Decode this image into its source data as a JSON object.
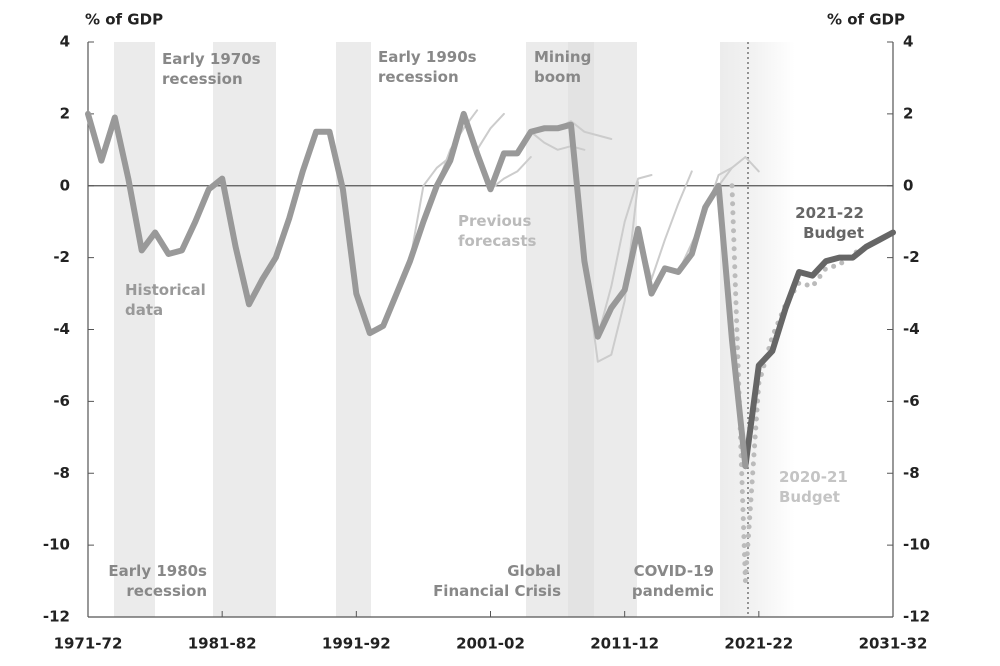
{
  "chart_data": {
    "type": "line",
    "y_label": "% of GDP",
    "y2_label": "% of GDP",
    "categories": [
      "1971-72",
      null,
      null,
      null,
      null,
      null,
      null,
      null,
      null,
      null,
      "1981-82",
      null,
      null,
      null,
      null,
      null,
      null,
      null,
      null,
      null,
      "1991-92",
      null,
      null,
      null,
      null,
      null,
      null,
      null,
      null,
      null,
      "2001-02",
      null,
      null,
      null,
      null,
      null,
      null,
      null,
      null,
      null,
      "2011-12",
      null,
      null,
      null,
      null,
      null,
      null,
      null,
      null,
      null,
      "2021-22",
      null,
      null,
      null,
      null,
      null,
      null,
      null,
      null,
      null,
      "2031-32"
    ],
    "ylim": [
      -12,
      4
    ],
    "yticks": [
      4,
      2,
      0,
      -2,
      -4,
      -6,
      -8,
      -10,
      -12
    ],
    "y2lim": [
      -12,
      4
    ],
    "y2ticks": [
      4,
      2,
      0,
      -2,
      -4,
      -6,
      -8,
      -10,
      -12
    ],
    "annotations": [
      "Early 1970s recession",
      "Early 1980s recession",
      "Early 1990s recession",
      "Mining boom",
      "Global Financial Crisis",
      "COVID-19 pandemic"
    ],
    "series": [
      {
        "name": "Historical data",
        "color": "#999999",
        "values": [
          2.0,
          0.7,
          1.9,
          0.2,
          -1.8,
          -1.3,
          -1.9,
          -1.8,
          -1.0,
          -0.1,
          0.2,
          -1.7,
          -3.3,
          -2.6,
          -2.0,
          -0.9,
          0.4,
          1.5,
          1.5,
          -0.1,
          -3.0,
          -4.1,
          -3.9,
          -3.0,
          -2.1,
          -1.0,
          0.0,
          0.7,
          2.0,
          0.9,
          -0.1,
          0.9,
          0.9,
          1.5,
          1.6,
          1.6,
          1.7,
          -2.1,
          -4.2,
          -3.4,
          -2.9,
          -1.2,
          -3.0,
          -2.3,
          -2.4,
          -1.9,
          -0.6,
          0.0,
          -4.3,
          -7.8,
          null,
          null,
          null,
          null,
          null,
          null,
          null,
          null,
          null,
          null,
          null
        ]
      },
      {
        "name": "2021-22 Budget",
        "color": "#666666",
        "values": [
          null,
          null,
          null,
          null,
          null,
          null,
          null,
          null,
          null,
          null,
          null,
          null,
          null,
          null,
          null,
          null,
          null,
          null,
          null,
          null,
          null,
          null,
          null,
          null,
          null,
          null,
          null,
          null,
          null,
          null,
          null,
          null,
          null,
          null,
          null,
          null,
          null,
          null,
          null,
          null,
          null,
          null,
          null,
          null,
          null,
          null,
          null,
          null,
          null,
          -7.8,
          -5.0,
          -4.6,
          -3.4,
          -2.4,
          -2.5,
          -2.1,
          -2.0,
          -2.0,
          -1.7,
          -1.5,
          -1.3
        ]
      },
      {
        "name": "2020-21 Budget",
        "color": "#bbbbbb",
        "dash": "dotted",
        "values": [
          null,
          null,
          null,
          null,
          null,
          null,
          null,
          null,
          null,
          null,
          null,
          null,
          null,
          null,
          null,
          null,
          null,
          null,
          null,
          null,
          null,
          null,
          null,
          null,
          null,
          null,
          null,
          null,
          null,
          null,
          null,
          null,
          null,
          null,
          null,
          null,
          null,
          null,
          null,
          null,
          null,
          null,
          null,
          null,
          null,
          null,
          null,
          null,
          0.0,
          -11.0,
          -5.5,
          -4.2,
          -3.3,
          -2.7,
          -2.8,
          -2.3,
          -2.2,
          -1.9,
          -1.7,
          -1.5,
          null
        ]
      },
      {
        "name": "Previous forecasts",
        "color": "#cccccc",
        "values": [
          null,
          null,
          null,
          null,
          null,
          null,
          null,
          null,
          null,
          null,
          null,
          null,
          null,
          null,
          null,
          null,
          null,
          null,
          null,
          null,
          null,
          null,
          null,
          null,
          -2.1,
          0.0,
          0.5,
          0.8,
          null,
          null,
          null,
          null,
          null,
          null,
          null,
          null,
          null,
          null,
          null,
          null,
          null,
          null,
          null,
          null,
          null,
          null,
          null,
          null,
          null,
          null,
          null,
          null,
          null,
          null,
          null,
          null,
          null,
          null,
          null,
          null,
          null
        ]
      },
      {
        "color": "#cccccc",
        "values": [
          null,
          null,
          null,
          null,
          null,
          null,
          null,
          null,
          null,
          null,
          null,
          null,
          null,
          null,
          null,
          null,
          null,
          null,
          null,
          null,
          null,
          null,
          null,
          null,
          null,
          null,
          0.0,
          1.0,
          1.6,
          2.1,
          null,
          null,
          null,
          null,
          null,
          null,
          null,
          null,
          null,
          null,
          null,
          null,
          null,
          null,
          null,
          null,
          null,
          null,
          null,
          null,
          null,
          null,
          null,
          null,
          null,
          null,
          null,
          null,
          null,
          null,
          null
        ]
      },
      {
        "color": "#cccccc",
        "values": [
          null,
          null,
          null,
          null,
          null,
          null,
          null,
          null,
          null,
          null,
          null,
          null,
          null,
          null,
          null,
          null,
          null,
          null,
          null,
          null,
          null,
          null,
          null,
          null,
          null,
          null,
          null,
          null,
          2.0,
          1.0,
          1.6,
          2.0,
          null,
          null,
          null,
          null,
          null,
          null,
          null,
          null,
          null,
          null,
          null,
          null,
          null,
          null,
          null,
          null,
          null,
          null,
          null,
          null,
          null,
          null,
          null,
          null,
          null,
          null,
          null,
          null,
          null
        ]
      },
      {
        "color": "#cccccc",
        "values": [
          null,
          null,
          null,
          null,
          null,
          null,
          null,
          null,
          null,
          null,
          null,
          null,
          null,
          null,
          null,
          null,
          null,
          null,
          null,
          null,
          null,
          null,
          null,
          null,
          null,
          null,
          null,
          null,
          null,
          null,
          -0.1,
          0.2,
          0.4,
          0.8,
          null,
          null,
          null,
          null,
          null,
          null,
          null,
          null,
          null,
          null,
          null,
          null,
          null,
          null,
          null,
          null,
          null,
          null,
          null,
          null,
          null,
          null,
          null,
          null,
          null,
          null,
          null
        ]
      },
      {
        "color": "#cccccc",
        "values": [
          null,
          null,
          null,
          null,
          null,
          null,
          null,
          null,
          null,
          null,
          null,
          null,
          null,
          null,
          null,
          null,
          null,
          null,
          null,
          null,
          null,
          null,
          null,
          null,
          null,
          null,
          null,
          null,
          null,
          null,
          null,
          null,
          null,
          1.5,
          1.2,
          1.0,
          1.1,
          1.0,
          null,
          null,
          null,
          null,
          null,
          null,
          null,
          null,
          null,
          null,
          null,
          null,
          null,
          null,
          null,
          null,
          null,
          null,
          null,
          null,
          null,
          null,
          null
        ]
      },
      {
        "color": "#cccccc",
        "values": [
          null,
          null,
          null,
          null,
          null,
          null,
          null,
          null,
          null,
          null,
          null,
          null,
          null,
          null,
          null,
          null,
          null,
          null,
          null,
          null,
          null,
          null,
          null,
          null,
          null,
          null,
          null,
          null,
          null,
          null,
          null,
          null,
          null,
          null,
          null,
          1.6,
          1.8,
          1.5,
          1.4,
          1.3,
          null,
          null,
          null,
          null,
          null,
          null,
          null,
          null,
          null,
          null,
          null,
          null,
          null,
          null,
          null,
          null,
          null,
          null,
          null,
          null,
          null
        ]
      },
      {
        "color": "#cccccc",
        "values": [
          null,
          null,
          null,
          null,
          null,
          null,
          null,
          null,
          null,
          null,
          null,
          null,
          null,
          null,
          null,
          null,
          null,
          null,
          null,
          null,
          null,
          null,
          null,
          null,
          null,
          null,
          null,
          null,
          null,
          null,
          null,
          null,
          null,
          null,
          null,
          null,
          null,
          -2.1,
          -4.9,
          -4.7,
          -3.2,
          0.1,
          null,
          null,
          null,
          null,
          null,
          null,
          null,
          null,
          null,
          null,
          null,
          null,
          null,
          null,
          null,
          null,
          null,
          null,
          null
        ]
      },
      {
        "color": "#cccccc",
        "values": [
          null,
          null,
          null,
          null,
          null,
          null,
          null,
          null,
          null,
          null,
          null,
          null,
          null,
          null,
          null,
          null,
          null,
          null,
          null,
          null,
          null,
          null,
          null,
          null,
          null,
          null,
          null,
          null,
          null,
          null,
          null,
          null,
          null,
          null,
          null,
          null,
          null,
          null,
          -4.2,
          -2.8,
          -1.0,
          0.2,
          0.3,
          null,
          null,
          null,
          null,
          null,
          null,
          null,
          null,
          null,
          null,
          null,
          null,
          null,
          null,
          null,
          null,
          null,
          null
        ]
      },
      {
        "color": "#cccccc",
        "values": [
          null,
          null,
          null,
          null,
          null,
          null,
          null,
          null,
          null,
          null,
          null,
          null,
          null,
          null,
          null,
          null,
          null,
          null,
          null,
          null,
          null,
          null,
          null,
          null,
          null,
          null,
          null,
          null,
          null,
          null,
          null,
          null,
          null,
          null,
          null,
          null,
          null,
          null,
          null,
          null,
          null,
          -1.2,
          -2.6,
          -1.5,
          -0.5,
          0.4,
          null,
          null,
          null,
          null,
          null,
          null,
          null,
          null,
          null,
          null,
          null,
          null,
          null,
          null,
          null
        ]
      },
      {
        "color": "#cccccc",
        "values": [
          null,
          null,
          null,
          null,
          null,
          null,
          null,
          null,
          null,
          null,
          null,
          null,
          null,
          null,
          null,
          null,
          null,
          null,
          null,
          null,
          null,
          null,
          null,
          null,
          null,
          null,
          null,
          null,
          null,
          null,
          null,
          null,
          null,
          null,
          null,
          null,
          null,
          null,
          null,
          null,
          null,
          null,
          null,
          null,
          -2.4,
          -1.6,
          -0.8,
          0.3,
          0.5,
          null,
          null,
          null,
          null,
          null,
          null,
          null,
          null,
          null,
          null,
          null,
          null
        ]
      },
      {
        "color": "#cccccc",
        "values": [
          null,
          null,
          null,
          null,
          null,
          null,
          null,
          null,
          null,
          null,
          null,
          null,
          null,
          null,
          null,
          null,
          null,
          null,
          null,
          null,
          null,
          null,
          null,
          null,
          null,
          null,
          null,
          null,
          null,
          null,
          null,
          null,
          null,
          null,
          null,
          null,
          null,
          null,
          null,
          null,
          null,
          null,
          null,
          null,
          null,
          null,
          null,
          0.0,
          0.5,
          0.8,
          0.4,
          null,
          null,
          null,
          null,
          null,
          null,
          null,
          null,
          null,
          null
        ]
      }
    ]
  }
}
